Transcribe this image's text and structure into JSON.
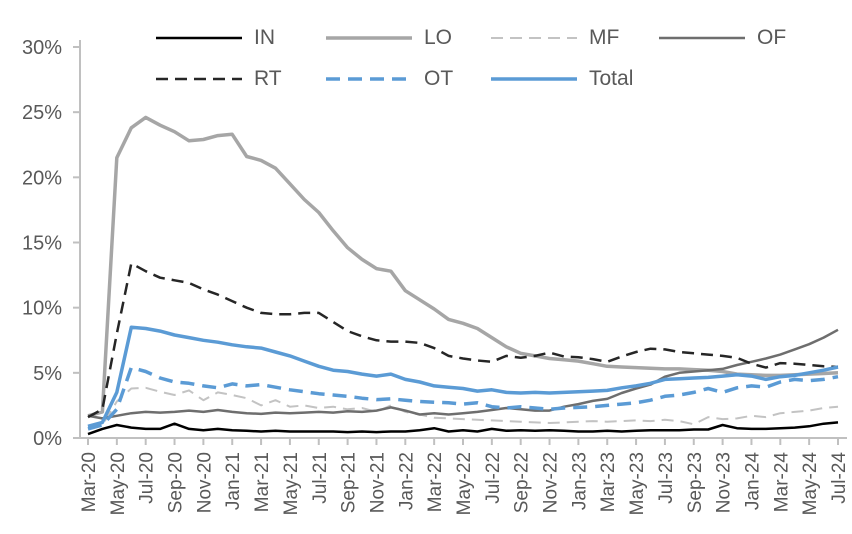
{
  "chart_data": {
    "type": "line",
    "title": "",
    "xlabel": "",
    "ylabel": "",
    "ylim": [
      0,
      30
    ],
    "y_tick_labels": [
      "0%",
      "5%",
      "10%",
      "15%",
      "20%",
      "25%",
      "30%"
    ],
    "y_tick_values": [
      0,
      5,
      10,
      15,
      20,
      25,
      30
    ],
    "grid": "off",
    "legend_position": "top",
    "axis_color": "#C0C0C0",
    "tick_label_color": "#595959",
    "x_tick_every": 2,
    "x": [
      "Mar-20",
      "Apr-20",
      "May-20",
      "Jun-20",
      "Jul-20",
      "Aug-20",
      "Sep-20",
      "Oct-20",
      "Nov-20",
      "Dec-20",
      "Jan-21",
      "Feb-21",
      "Mar-21",
      "Apr-21",
      "May-21",
      "Jun-21",
      "Jul-21",
      "Aug-21",
      "Sep-21",
      "Oct-21",
      "Nov-21",
      "Dec-21",
      "Jan-22",
      "Feb-22",
      "Mar-22",
      "Apr-22",
      "May-22",
      "Jun-22",
      "Jul-22",
      "Aug-22",
      "Sep-22",
      "Oct-22",
      "Nov-22",
      "Dec-22",
      "Jan-23",
      "Feb-23",
      "Mar-23",
      "Apr-23",
      "May-23",
      "Jun-23",
      "Jul-23",
      "Aug-23",
      "Sep-23",
      "Oct-23",
      "Nov-23",
      "Dec-23",
      "Jan-24",
      "Feb-24",
      "Mar-24",
      "Apr-24",
      "May-24",
      "Jun-24",
      "Jul-24"
    ],
    "series": [
      {
        "name": "IN",
        "color": "#000000",
        "dash": false,
        "width": 2.5,
        "dasharray": "",
        "values": [
          0.3,
          0.7,
          1.0,
          0.8,
          0.7,
          0.7,
          1.1,
          0.7,
          0.6,
          0.7,
          0.6,
          0.55,
          0.5,
          0.55,
          0.5,
          0.5,
          0.5,
          0.5,
          0.45,
          0.5,
          0.45,
          0.5,
          0.5,
          0.6,
          0.75,
          0.5,
          0.6,
          0.5,
          0.7,
          0.55,
          0.6,
          0.55,
          0.6,
          0.55,
          0.5,
          0.5,
          0.55,
          0.5,
          0.55,
          0.6,
          0.6,
          0.6,
          0.65,
          0.65,
          1.0,
          0.75,
          0.7,
          0.7,
          0.75,
          0.8,
          0.9,
          1.1,
          1.2
        ]
      },
      {
        "name": "LO",
        "color": "#A6A6A6",
        "dash": false,
        "width": 3.5,
        "dasharray": "",
        "values": [
          1.7,
          2.0,
          21.5,
          23.8,
          24.6,
          24.0,
          23.5,
          22.8,
          22.9,
          23.2,
          23.3,
          21.6,
          21.3,
          20.7,
          19.5,
          18.3,
          17.3,
          15.9,
          14.6,
          13.7,
          13.0,
          12.8,
          11.3,
          10.6,
          9.9,
          9.1,
          8.8,
          8.4,
          7.7,
          7.0,
          6.5,
          6.3,
          6.1,
          6.0,
          5.9,
          5.7,
          5.5,
          5.45,
          5.4,
          5.35,
          5.3,
          5.3,
          5.25,
          5.2,
          5.1,
          4.9,
          4.85,
          4.8,
          4.8,
          4.85,
          4.9,
          4.95,
          5.0
        ]
      },
      {
        "name": "MF",
        "color": "#C3C3C3",
        "dash": true,
        "width": 2,
        "dasharray": "12 7",
        "values": [
          0.8,
          1.0,
          2.8,
          3.8,
          3.85,
          3.55,
          3.3,
          3.65,
          2.9,
          3.5,
          3.3,
          3.05,
          2.5,
          2.9,
          2.4,
          2.5,
          2.3,
          2.4,
          2.2,
          2.3,
          2.0,
          2.5,
          2.0,
          1.8,
          1.55,
          1.5,
          1.45,
          1.4,
          1.35,
          1.3,
          1.25,
          1.2,
          1.15,
          1.2,
          1.25,
          1.3,
          1.25,
          1.3,
          1.35,
          1.3,
          1.4,
          1.3,
          1.05,
          1.6,
          1.45,
          1.5,
          1.7,
          1.6,
          1.9,
          2.0,
          2.1,
          2.3,
          2.4
        ]
      },
      {
        "name": "OF",
        "color": "#6E6E6E",
        "dash": false,
        "width": 2.5,
        "dasharray": "",
        "values": [
          1.7,
          1.5,
          1.7,
          1.9,
          2.0,
          1.95,
          2.0,
          2.1,
          2.0,
          2.15,
          2.0,
          1.9,
          1.85,
          1.95,
          1.9,
          1.95,
          2.0,
          1.95,
          2.05,
          2.0,
          2.1,
          2.35,
          2.1,
          1.8,
          1.9,
          1.8,
          1.9,
          2.0,
          2.15,
          2.3,
          2.2,
          2.1,
          2.1,
          2.4,
          2.6,
          2.85,
          3.0,
          3.45,
          3.8,
          4.1,
          4.7,
          5.0,
          5.1,
          5.2,
          5.3,
          5.6,
          5.85,
          6.1,
          6.4,
          6.8,
          7.2,
          7.7,
          8.3
        ]
      },
      {
        "name": "RT",
        "color": "#262626",
        "dash": true,
        "width": 2.5,
        "dasharray": "12 7",
        "values": [
          1.6,
          2.2,
          8.0,
          13.4,
          12.8,
          12.3,
          12.1,
          11.9,
          11.4,
          11.0,
          10.5,
          10.0,
          9.6,
          9.5,
          9.5,
          9.6,
          9.6,
          8.9,
          8.2,
          7.8,
          7.5,
          7.4,
          7.4,
          7.3,
          6.9,
          6.3,
          6.1,
          5.95,
          5.85,
          6.3,
          6.15,
          6.3,
          6.55,
          6.25,
          6.2,
          6.05,
          5.85,
          6.25,
          6.6,
          6.85,
          6.8,
          6.6,
          6.5,
          6.4,
          6.3,
          6.15,
          5.7,
          5.4,
          5.75,
          5.7,
          5.6,
          5.5,
          5.45
        ]
      },
      {
        "name": "OT",
        "color": "#5B9BD5",
        "dash": true,
        "width": 3.5,
        "dasharray": "14 8",
        "values": [
          0.7,
          1.0,
          2.2,
          5.4,
          5.1,
          4.6,
          4.3,
          4.2,
          4.0,
          3.85,
          4.15,
          4.0,
          4.1,
          3.9,
          3.7,
          3.55,
          3.4,
          3.3,
          3.2,
          3.05,
          2.95,
          3.0,
          2.9,
          2.8,
          2.75,
          2.7,
          2.6,
          2.7,
          2.4,
          2.3,
          2.4,
          2.3,
          2.2,
          2.3,
          2.35,
          2.4,
          2.5,
          2.6,
          2.7,
          2.9,
          3.2,
          3.3,
          3.5,
          3.8,
          3.5,
          3.85,
          4.0,
          3.9,
          4.3,
          4.5,
          4.4,
          4.5,
          4.7
        ]
      },
      {
        "name": "Total",
        "color": "#5B9BD5",
        "dash": false,
        "width": 3.5,
        "dasharray": "",
        "values": [
          0.9,
          1.2,
          3.5,
          8.5,
          8.4,
          8.2,
          7.9,
          7.7,
          7.5,
          7.35,
          7.15,
          7.0,
          6.9,
          6.6,
          6.3,
          5.9,
          5.5,
          5.2,
          5.1,
          4.9,
          4.75,
          4.9,
          4.5,
          4.3,
          4.0,
          3.9,
          3.8,
          3.6,
          3.7,
          3.5,
          3.45,
          3.5,
          3.45,
          3.5,
          3.55,
          3.6,
          3.65,
          3.85,
          4.0,
          4.2,
          4.5,
          4.55,
          4.6,
          4.65,
          4.75,
          4.85,
          4.75,
          4.5,
          4.7,
          4.8,
          5.0,
          5.2,
          5.45
        ]
      }
    ]
  }
}
